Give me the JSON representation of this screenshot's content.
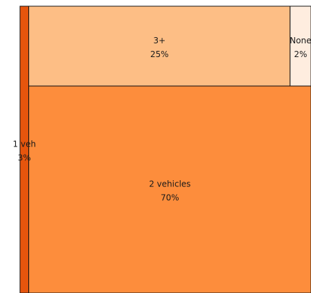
{
  "chart_data": {
    "type": "treemap",
    "title": "",
    "cells": [
      {
        "label": "1 veh",
        "percent_label": "3%",
        "value": 3,
        "color": "#e6550d"
      },
      {
        "label": "3+",
        "percent_label": "25%",
        "value": 25,
        "color": "#fdbe85"
      },
      {
        "label": "None",
        "percent_label": "2%",
        "value": 2,
        "color": "#feeddf"
      },
      {
        "label": "2 vehicles",
        "percent_label": "70%",
        "value": 70,
        "color": "#fd8d3c"
      }
    ]
  }
}
